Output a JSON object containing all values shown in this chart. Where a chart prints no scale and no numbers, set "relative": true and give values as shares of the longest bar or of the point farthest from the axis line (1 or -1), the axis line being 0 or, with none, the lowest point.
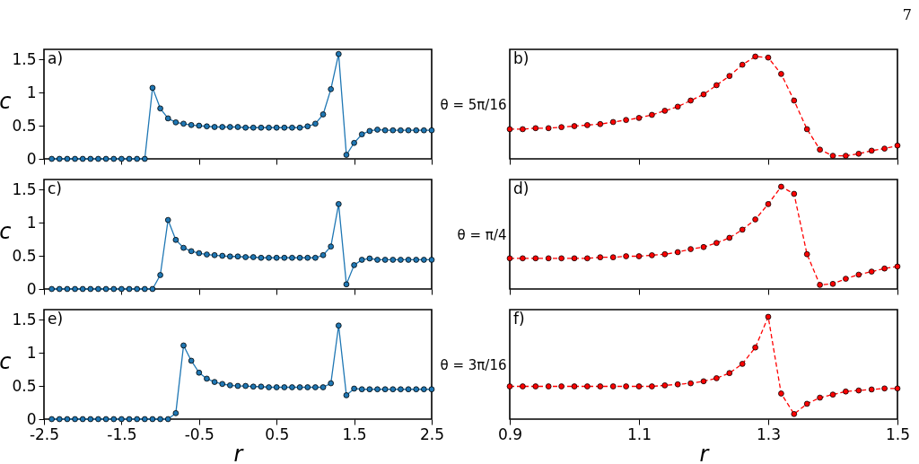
{
  "chart_data": [
    {
      "type": "line",
      "ylabel": "c",
      "annotations": [
        "a)"
      ],
      "tick_labels": "y",
      "marker": "circle",
      "line_style": "solid",
      "xlim": [
        -2.5,
        2.5
      ],
      "xticks": [
        -2.5,
        -1.5,
        -0.5,
        0.5,
        1.5,
        2.5
      ],
      "ylim": [
        0,
        1.65
      ],
      "yticks": [
        0,
        0.5,
        1,
        1.5
      ],
      "x": [
        -2.4,
        -2.3,
        -2.2,
        -2.1,
        -2.0,
        -1.9,
        -1.8,
        -1.7,
        -1.6,
        -1.5,
        -1.4,
        -1.3,
        -1.2,
        -1.1,
        -1.0,
        -0.9,
        -0.8,
        -0.7,
        -0.6,
        -0.5,
        -0.4,
        -0.3,
        -0.2,
        -0.1,
        0,
        0.1,
        0.2,
        0.3,
        0.4,
        0.5,
        0.6,
        0.7,
        0.8,
        0.9,
        1.0,
        1.1,
        1.2,
        1.3,
        1.4,
        1.5,
        1.6,
        1.7,
        1.8,
        1.9,
        2.0,
        2.1,
        2.2,
        2.3,
        2.4,
        2.5
      ],
      "series": [
        {
          "color": "#1f77b4",
          "values": [
            0,
            0,
            0,
            0,
            0,
            0,
            0,
            0,
            0,
            0,
            0,
            0,
            0,
            1.07,
            0.76,
            0.61,
            0.55,
            0.53,
            0.51,
            0.5,
            0.49,
            0.48,
            0.48,
            0.48,
            0.48,
            0.47,
            0.47,
            0.47,
            0.47,
            0.47,
            0.47,
            0.47,
            0.47,
            0.49,
            0.53,
            0.67,
            1.05,
            1.58,
            0.06,
            0.24,
            0.37,
            0.42,
            0.44,
            0.43,
            0.43,
            0.43,
            0.43,
            0.43,
            0.43,
            0.43
          ]
        }
      ]
    },
    {
      "type": "line",
      "relative": true,
      "ylabel": "θ = 5π/16",
      "annotations": [
        "b)",
        "7"
      ],
      "tick_labels": false,
      "marker": "circle",
      "line_style": "dashed",
      "xlim": [
        0.9,
        1.5
      ],
      "xticks": [
        0.9,
        1.1,
        1.3,
        1.5
      ],
      "x": [
        0.9,
        0.92,
        0.94,
        0.96,
        0.98,
        1.0,
        1.02,
        1.04,
        1.06,
        1.08,
        1.1,
        1.12,
        1.14,
        1.16,
        1.18,
        1.2,
        1.22,
        1.24,
        1.26,
        1.28,
        1.3,
        1.32,
        1.34,
        1.36,
        1.38,
        1.4,
        1.42,
        1.44,
        1.46,
        1.48,
        1.5
      ],
      "series": [
        {
          "color": "#ff0000",
          "values": [
            0.29,
            0.29,
            0.3,
            0.3,
            0.31,
            0.32,
            0.33,
            0.34,
            0.36,
            0.38,
            0.4,
            0.43,
            0.47,
            0.51,
            0.57,
            0.63,
            0.72,
            0.81,
            0.92,
            1,
            0.99,
            0.83,
            0.57,
            0.29,
            0.09,
            0.03,
            0.03,
            0.05,
            0.08,
            0.1,
            0.13
          ]
        }
      ]
    },
    {
      "type": "line",
      "ylabel": "c",
      "annotations": [
        "c)"
      ],
      "tick_labels": "y",
      "marker": "circle",
      "line_style": "solid",
      "xlim": [
        -2.5,
        2.5
      ],
      "xticks": [
        -2.5,
        -1.5,
        -0.5,
        0.5,
        1.5,
        2.5
      ],
      "ylim": [
        0,
        1.65
      ],
      "yticks": [
        0,
        0.5,
        1,
        1.5
      ],
      "x": [
        -2.4,
        -2.3,
        -2.2,
        -2.1,
        -2.0,
        -1.9,
        -1.8,
        -1.7,
        -1.6,
        -1.5,
        -1.4,
        -1.3,
        -1.2,
        -1.1,
        -1.0,
        -0.9,
        -0.8,
        -0.7,
        -0.6,
        -0.5,
        -0.4,
        -0.3,
        -0.2,
        -0.1,
        0,
        0.1,
        0.2,
        0.3,
        0.4,
        0.5,
        0.6,
        0.7,
        0.8,
        0.9,
        1.0,
        1.1,
        1.2,
        1.3,
        1.4,
        1.5,
        1.6,
        1.7,
        1.8,
        1.9,
        2.0,
        2.1,
        2.2,
        2.3,
        2.4,
        2.5
      ],
      "series": [
        {
          "color": "#1f77b4",
          "values": [
            0,
            0,
            0,
            0,
            0,
            0,
            0,
            0,
            0,
            0,
            0,
            0,
            0,
            0,
            0.21,
            1.04,
            0.74,
            0.62,
            0.57,
            0.54,
            0.52,
            0.51,
            0.5,
            0.49,
            0.49,
            0.48,
            0.48,
            0.47,
            0.47,
            0.47,
            0.47,
            0.47,
            0.47,
            0.47,
            0.47,
            0.51,
            0.64,
            1.28,
            0.07,
            0.36,
            0.44,
            0.46,
            0.44,
            0.44,
            0.44,
            0.44,
            0.44,
            0.44,
            0.44,
            0.44
          ]
        }
      ]
    },
    {
      "type": "line",
      "relative": true,
      "ylabel": "θ = π/4",
      "annotations": [
        "d)"
      ],
      "tick_labels": false,
      "marker": "circle",
      "line_style": "dashed",
      "xlim": [
        0.9,
        1.5
      ],
      "xticks": [
        0.9,
        1.1,
        1.3,
        1.5
      ],
      "x": [
        0.9,
        0.92,
        0.94,
        0.96,
        0.98,
        1.0,
        1.02,
        1.04,
        1.06,
        1.08,
        1.1,
        1.12,
        1.14,
        1.16,
        1.18,
        1.2,
        1.22,
        1.24,
        1.26,
        1.28,
        1.3,
        1.32,
        1.34,
        1.36,
        1.38,
        1.4,
        1.42,
        1.44,
        1.46,
        1.48,
        1.5
      ],
      "series": [
        {
          "color": "#ff0000",
          "values": [
            0.3,
            0.3,
            0.3,
            0.3,
            0.3,
            0.3,
            0.3,
            0.31,
            0.31,
            0.32,
            0.32,
            0.33,
            0.34,
            0.36,
            0.39,
            0.41,
            0.45,
            0.5,
            0.58,
            0.68,
            0.83,
            1,
            0.93,
            0.34,
            0.04,
            0.05,
            0.1,
            0.14,
            0.17,
            0.2,
            0.22
          ]
        }
      ]
    },
    {
      "type": "line",
      "xlabel": "r",
      "ylabel": "c",
      "annotations": [
        "e)"
      ],
      "marker": "circle",
      "line_style": "solid",
      "xlim": [
        -2.5,
        2.5
      ],
      "xticks": [
        -2.5,
        -1.5,
        -0.5,
        0.5,
        1.5,
        2.5
      ],
      "ylim": [
        0,
        1.65
      ],
      "yticks": [
        0,
        0.5,
        1,
        1.5
      ],
      "x": [
        -2.4,
        -2.3,
        -2.2,
        -2.1,
        -2.0,
        -1.9,
        -1.8,
        -1.7,
        -1.6,
        -1.5,
        -1.4,
        -1.3,
        -1.2,
        -1.1,
        -1.0,
        -0.9,
        -0.8,
        -0.7,
        -0.6,
        -0.5,
        -0.4,
        -0.3,
        -0.2,
        -0.1,
        0,
        0.1,
        0.2,
        0.3,
        0.4,
        0.5,
        0.6,
        0.7,
        0.8,
        0.9,
        1.0,
        1.1,
        1.2,
        1.3,
        1.4,
        1.5,
        1.6,
        1.7,
        1.8,
        1.9,
        2.0,
        2.1,
        2.2,
        2.3,
        2.4,
        2.5
      ],
      "series": [
        {
          "color": "#1f77b4",
          "values": [
            0,
            0,
            0,
            0,
            0,
            0,
            0,
            0,
            0,
            0,
            0,
            0,
            0,
            0,
            0,
            0,
            0.09,
            1.11,
            0.88,
            0.7,
            0.61,
            0.56,
            0.53,
            0.51,
            0.5,
            0.5,
            0.49,
            0.49,
            0.48,
            0.48,
            0.48,
            0.48,
            0.48,
            0.48,
            0.48,
            0.48,
            0.54,
            1.41,
            0.36,
            0.46,
            0.45,
            0.45,
            0.45,
            0.45,
            0.45,
            0.45,
            0.45,
            0.45,
            0.45,
            0.45
          ]
        }
      ]
    },
    {
      "type": "line",
      "relative": true,
      "xlabel": "r",
      "ylabel": "θ = 3π/16",
      "annotations": [
        "f)"
      ],
      "tick_labels": "x",
      "marker": "circle",
      "line_style": "dashed",
      "xlim": [
        0.9,
        1.5
      ],
      "xticks": [
        0.9,
        1.1,
        1.3,
        1.5
      ],
      "x": [
        0.9,
        0.92,
        0.94,
        0.96,
        0.98,
        1.0,
        1.02,
        1.04,
        1.06,
        1.08,
        1.1,
        1.12,
        1.14,
        1.16,
        1.18,
        1.2,
        1.22,
        1.24,
        1.26,
        1.28,
        1.3,
        1.32,
        1.34,
        1.36,
        1.38,
        1.4,
        1.42,
        1.44,
        1.46,
        1.48,
        1.5
      ],
      "series": [
        {
          "color": "#ff0000",
          "values": [
            0.32,
            0.32,
            0.32,
            0.32,
            0.32,
            0.32,
            0.32,
            0.32,
            0.32,
            0.32,
            0.32,
            0.32,
            0.33,
            0.34,
            0.35,
            0.37,
            0.4,
            0.45,
            0.54,
            0.7,
            1,
            0.25,
            0.05,
            0.15,
            0.21,
            0.24,
            0.27,
            0.28,
            0.29,
            0.3,
            0.3
          ]
        }
      ]
    }
  ]
}
